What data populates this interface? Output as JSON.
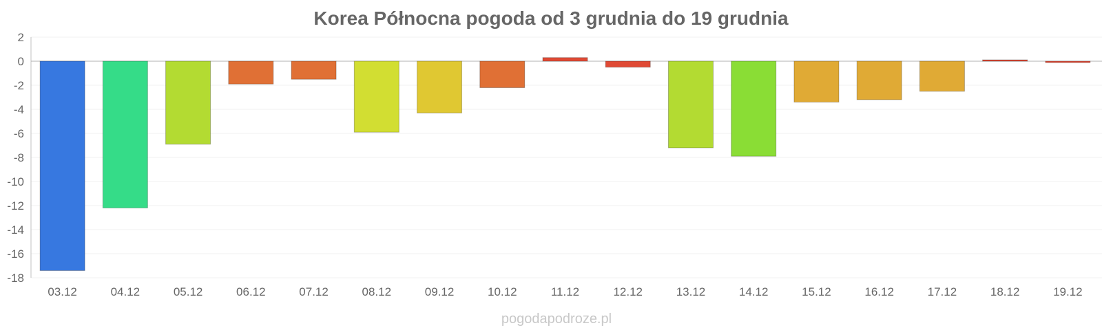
{
  "chart_data": {
    "type": "bar",
    "title": "Korea Północna pogoda od 3 grudnia do 19 grudnia",
    "categories": [
      "03.12",
      "04.12",
      "05.12",
      "06.12",
      "07.12",
      "08.12",
      "09.12",
      "10.12",
      "11.12",
      "12.12",
      "13.12",
      "14.12",
      "15.12",
      "16.12",
      "17.12",
      "18.12",
      "19.12"
    ],
    "values": [
      -17.4,
      -12.2,
      -6.9,
      -1.9,
      -1.5,
      -5.9,
      -4.3,
      -2.2,
      0.3,
      -0.5,
      -7.2,
      -7.9,
      -3.4,
      -3.2,
      -2.5,
      0.0,
      -0.1
    ],
    "colors": [
      "#3778e0",
      "#35dc88",
      "#b3db32",
      "#e07035",
      "#e07035",
      "#d2de32",
      "#e0c832",
      "#e07035",
      "#e04a35",
      "#e04a35",
      "#b3db32",
      "#8add35",
      "#e0aa35",
      "#e0aa35",
      "#e0aa35",
      "#e04a35",
      "#e04a35"
    ],
    "yticks": [
      2,
      0,
      -2,
      -4,
      -6,
      -8,
      -10,
      -12,
      -14,
      -16,
      -18
    ],
    "ylim": [
      -18,
      2
    ],
    "grid": true,
    "xlabel": "",
    "ylabel": ""
  },
  "credit": "pogodapodroze.pl"
}
